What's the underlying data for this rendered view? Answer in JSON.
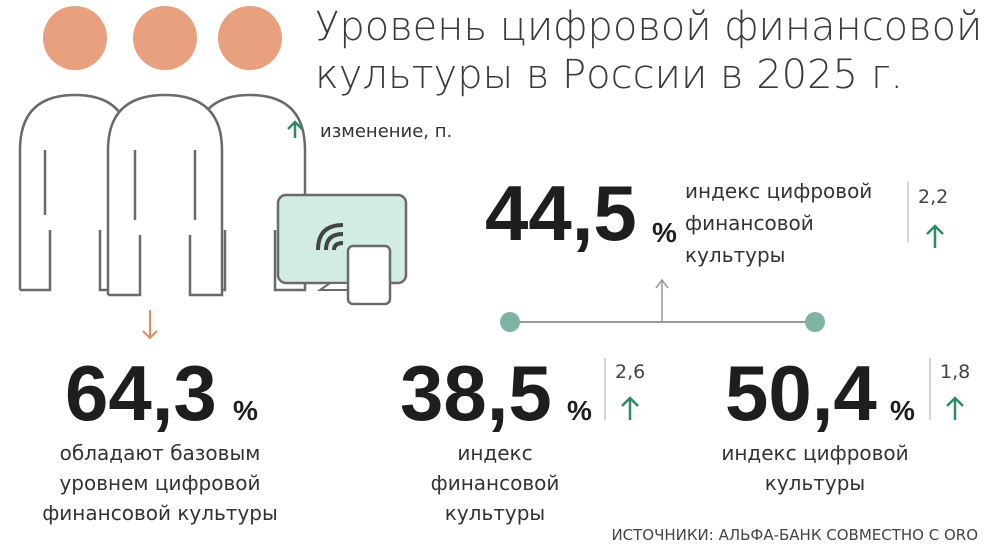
{
  "title": [
    "Уровень цифровой финансовой",
    "культуры в России в 2025 г."
  ],
  "legend": "изменение, п.",
  "indices": [
    {
      "value": "44,5",
      "unit": "%",
      "label": [
        "индекс цифровой",
        "финансовой",
        "культуры"
      ],
      "change": "2,2"
    },
    {
      "value": "38,5",
      "unit": "%",
      "label": [
        "индекс",
        "финансовой",
        "культуры"
      ],
      "change": "2,6"
    },
    {
      "value": "50,4",
      "unit": "%",
      "label": [
        "индекс цифровой",
        "культуры"
      ],
      "change": "1,8"
    }
  ],
  "basic": {
    "value": "64,3",
    "unit": "%",
    "label": [
      "обладают базовым",
      "уровнем цифровой",
      "финансовой культуры"
    ]
  },
  "source": "ИСТОЧНИКИ: АЛЬФА-БАНК СОВМЕСТНО С ORO"
}
